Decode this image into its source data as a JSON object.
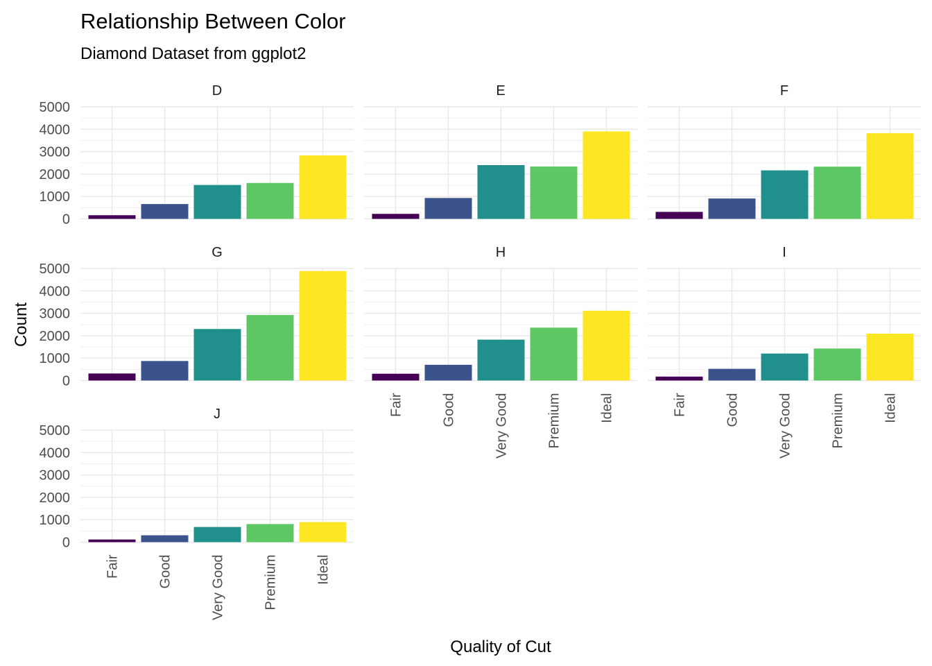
{
  "chart_data": {
    "type": "bar",
    "title": "Relationship Between Color",
    "subtitle": "Diamond Dataset from ggplot2",
    "xlabel": "Quality of Cut",
    "ylabel": "Count",
    "categories": [
      "Fair",
      "Good",
      "Very Good",
      "Premium",
      "Ideal"
    ],
    "category_colors": [
      "#440154",
      "#3B528B",
      "#21908C",
      "#5DC863",
      "#FDE725"
    ],
    "ylim": [
      0,
      5000
    ],
    "y_ticks": [
      0,
      1000,
      2000,
      3000,
      4000,
      5000
    ],
    "facets": [
      {
        "name": "D",
        "values": [
          163,
          662,
          1513,
          1603,
          2834
        ]
      },
      {
        "name": "E",
        "values": [
          224,
          933,
          2400,
          2337,
          3903
        ]
      },
      {
        "name": "F",
        "values": [
          312,
          909,
          2164,
          2331,
          3826
        ]
      },
      {
        "name": "G",
        "values": [
          314,
          871,
          2299,
          2924,
          4884
        ]
      },
      {
        "name": "H",
        "values": [
          303,
          702,
          1824,
          2360,
          3115
        ]
      },
      {
        "name": "I",
        "values": [
          175,
          522,
          1204,
          1428,
          2093
        ]
      },
      {
        "name": "J",
        "values": [
          119,
          307,
          678,
          808,
          896
        ]
      }
    ],
    "grid": true,
    "legend": "none"
  }
}
